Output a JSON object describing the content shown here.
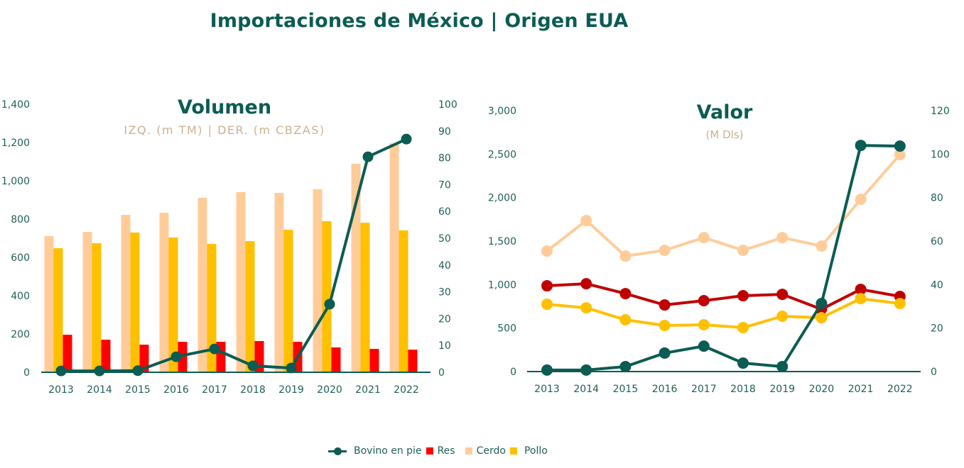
{
  "title": "Importaciones de México | Origen EUA",
  "colors": {
    "bovino": "#0b5c52",
    "res_bar": "#ff0000",
    "res_line": "#c00000",
    "cerdo": "#ffcc99",
    "pollo": "#ffc000",
    "axis": "#1f5f58"
  },
  "legend": [
    {
      "name": "Bovino en pie",
      "key": "bovino",
      "marker": "line-dot"
    },
    {
      "name": "Res",
      "key": "res",
      "marker": "square"
    },
    {
      "name": "Cerdo",
      "key": "cerdo",
      "marker": "square"
    },
    {
      "name": "Pollo",
      "key": "pollo",
      "marker": "square"
    }
  ],
  "chart_data": [
    {
      "type": "bar",
      "title": "Volumen",
      "subtitle": "IZQ. (m TM) | DER. (m CBZAS)",
      "categories": [
        "2013",
        "2014",
        "2015",
        "2016",
        "2017",
        "2018",
        "2019",
        "2020",
        "2021",
        "2022"
      ],
      "ylim": [
        0,
        1400
      ],
      "yticks": [
        "0",
        "200",
        "400",
        "600",
        "800",
        "1,000",
        "1,200",
        "1,400"
      ],
      "y2lim": [
        0,
        100
      ],
      "y2ticks": [
        "0",
        "10",
        "20",
        "30",
        "40",
        "50",
        "60",
        "70",
        "80",
        "90",
        "100"
      ],
      "grid": false,
      "legend_position": "bottom",
      "series": [
        {
          "name": "Cerdo",
          "key": "cerdo",
          "type": "bar",
          "axis": "left",
          "values": [
            711,
            733,
            822,
            833,
            911,
            941,
            937,
            956,
            1089,
            1196
          ]
        },
        {
          "name": "Pollo",
          "key": "pollo",
          "type": "bar",
          "axis": "left",
          "values": [
            648,
            674,
            730,
            704,
            670,
            685,
            744,
            789,
            781,
            741
          ]
        },
        {
          "name": "Res",
          "key": "res",
          "type": "bar",
          "axis": "left",
          "values": [
            196,
            170,
            144,
            159,
            159,
            163,
            159,
            130,
            122,
            118
          ]
        },
        {
          "name": "Bovino en pie",
          "key": "bovino",
          "type": "line",
          "axis": "right",
          "values": [
            0.5,
            0.5,
            0.6,
            5.8,
            8.7,
            2.4,
            1.6,
            25.4,
            80.4,
            87.0
          ]
        }
      ]
    },
    {
      "type": "line",
      "title": "Valor",
      "subtitle": "(M Dls)",
      "categories": [
        "2013",
        "2014",
        "2015",
        "2016",
        "2017",
        "2018",
        "2019",
        "2020",
        "2021",
        "2022"
      ],
      "ylim": [
        0,
        3000
      ],
      "yticks": [
        "0",
        "500",
        "1,000",
        "1,500",
        "2,000",
        "2,500",
        "3,000"
      ],
      "y2lim": [
        0,
        120
      ],
      "y2ticks": [
        "0",
        "20",
        "40",
        "60",
        "80",
        "100",
        "120"
      ],
      "grid": false,
      "legend_position": "bottom",
      "series": [
        {
          "name": "Cerdo",
          "key": "cerdo",
          "type": "line",
          "axis": "left",
          "values": [
            1386,
            1736,
            1328,
            1394,
            1540,
            1394,
            1540,
            1443,
            1980,
            2494
          ]
        },
        {
          "name": "Res",
          "key": "res_line",
          "type": "line",
          "axis": "left",
          "values": [
            986,
            1010,
            896,
            766,
            815,
            872,
            888,
            717,
            945,
            864
          ]
        },
        {
          "name": "Pollo",
          "key": "pollo",
          "type": "line",
          "axis": "left",
          "values": [
            774,
            733,
            595,
            530,
            538,
            505,
            636,
            619,
            839,
            782
          ]
        },
        {
          "name": "Bovino en pie",
          "key": "bovino",
          "type": "line",
          "axis": "right",
          "values": [
            0.7,
            0.7,
            2.3,
            8.5,
            11.7,
            3.9,
            2.3,
            31.3,
            104.0,
            103.7
          ]
        }
      ]
    }
  ]
}
